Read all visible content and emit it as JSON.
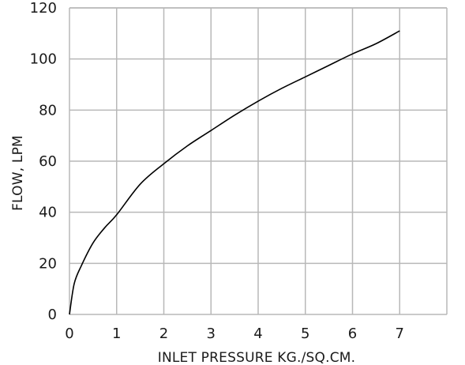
{
  "chart_data": {
    "type": "line",
    "xlabel": "INLET PRESSURE KG./SQ.CM.",
    "ylabel": "FLOW, LPM",
    "xlim": [
      0,
      8
    ],
    "ylim": [
      0,
      120
    ],
    "x_ticks": [
      0,
      1,
      2,
      3,
      4,
      5,
      6,
      7
    ],
    "y_ticks": [
      0,
      20,
      40,
      60,
      80,
      100,
      120
    ],
    "grid": true,
    "series": [
      {
        "color": "#000000",
        "x": [
          0,
          0.1,
          0.25,
          0.5,
          0.75,
          1,
          1.5,
          2,
          2.5,
          3,
          3.5,
          4,
          4.5,
          5,
          5.5,
          6,
          6.5,
          7
        ],
        "y": [
          0,
          12,
          19,
          28,
          34,
          39,
          51,
          59,
          66,
          72,
          78,
          83.5,
          88.5,
          93,
          97.5,
          102,
          106,
          111
        ]
      }
    ]
  }
}
